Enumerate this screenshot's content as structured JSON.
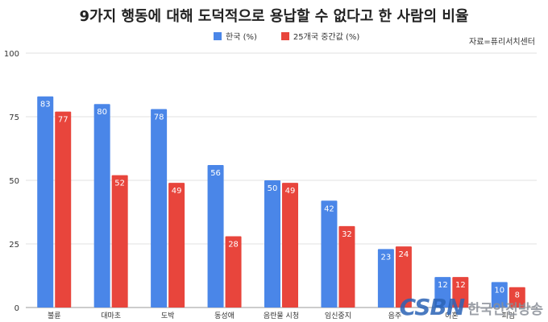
{
  "page": {
    "title": "9가지 행동에 대해 도덕적으로 용납할 수 없다고 한 사람의 비율",
    "source": "자료=퓨리서치센터",
    "watermark": {
      "logo": "CSBN",
      "text": "한국안전방송"
    }
  },
  "colors": {
    "series1": "#4a86e8",
    "series2": "#e8453c"
  },
  "chart_data": {
    "type": "bar",
    "title": "9가지 행동에 대해 도덕적으로 용납할 수 없다고 한 사람의 비율",
    "categories": [
      "불륜",
      "대마초",
      "도박",
      "동성애",
      "음란물 시청",
      "임신중지",
      "음주",
      "이혼",
      "피임"
    ],
    "series": [
      {
        "name": "한국 (%)",
        "values": [
          83,
          80,
          78,
          56,
          50,
          42,
          23,
          12,
          10
        ]
      },
      {
        "name": "25개국 중간값 (%)",
        "values": [
          77,
          52,
          49,
          28,
          49,
          32,
          24,
          12,
          8
        ]
      }
    ],
    "ylim": [
      0,
      100
    ],
    "yticks": [
      0,
      25,
      50,
      75,
      100
    ],
    "grid": true,
    "legend_position": "top-center"
  }
}
